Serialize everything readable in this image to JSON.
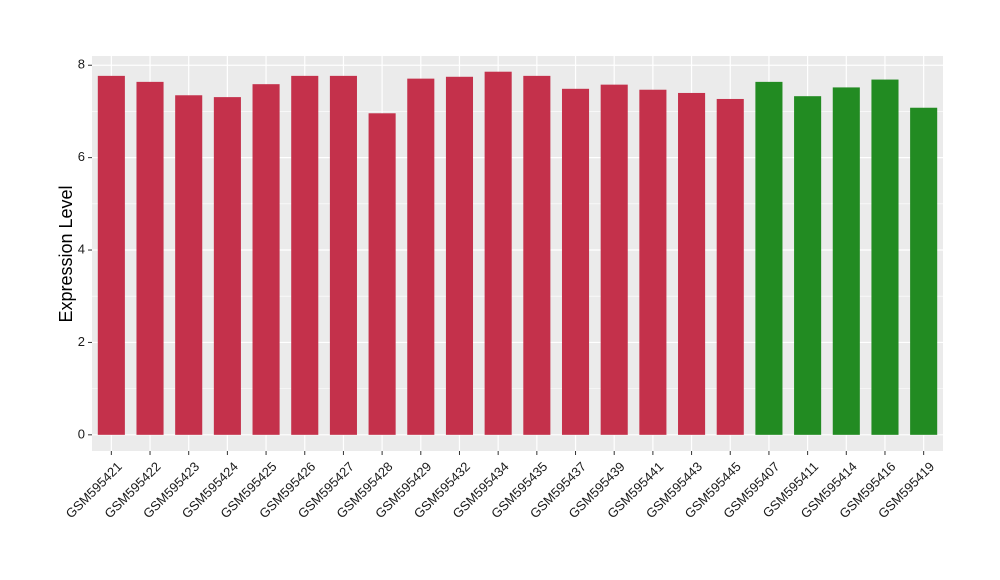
{
  "chart_data": {
    "type": "bar",
    "title": "",
    "xlabel": "",
    "ylabel": "Expression Level",
    "ylim": [
      -0.35,
      8.2
    ],
    "yticks": [
      0,
      2,
      4,
      6,
      8
    ],
    "grid": true,
    "categories": [
      "GSM595421",
      "GSM595422",
      "GSM595423",
      "GSM595424",
      "GSM595425",
      "GSM595426",
      "GSM595427",
      "GSM595428",
      "GSM595429",
      "GSM595432",
      "GSM595434",
      "GSM595435",
      "GSM595437",
      "GSM595439",
      "GSM595441",
      "GSM595443",
      "GSM595445",
      "GSM595407",
      "GSM595411",
      "GSM595414",
      "GSM595416",
      "GSM595419"
    ],
    "values": [
      7.77,
      7.64,
      7.35,
      7.31,
      7.59,
      7.77,
      7.77,
      6.96,
      7.71,
      7.75,
      7.86,
      7.77,
      7.49,
      7.58,
      7.47,
      7.4,
      7.27,
      7.64,
      7.33,
      7.52,
      7.69,
      7.08
    ],
    "bar_colors": [
      "#c4314b",
      "#c4314b",
      "#c4314b",
      "#c4314b",
      "#c4314b",
      "#c4314b",
      "#c4314b",
      "#c4314b",
      "#c4314b",
      "#c4314b",
      "#c4314b",
      "#c4314b",
      "#c4314b",
      "#c4314b",
      "#c4314b",
      "#c4314b",
      "#c4314b",
      "#228b22",
      "#228b22",
      "#228b22",
      "#228b22",
      "#228b22"
    ],
    "panel_background": "#ebebeb",
    "grid_color": "#ffffff"
  }
}
